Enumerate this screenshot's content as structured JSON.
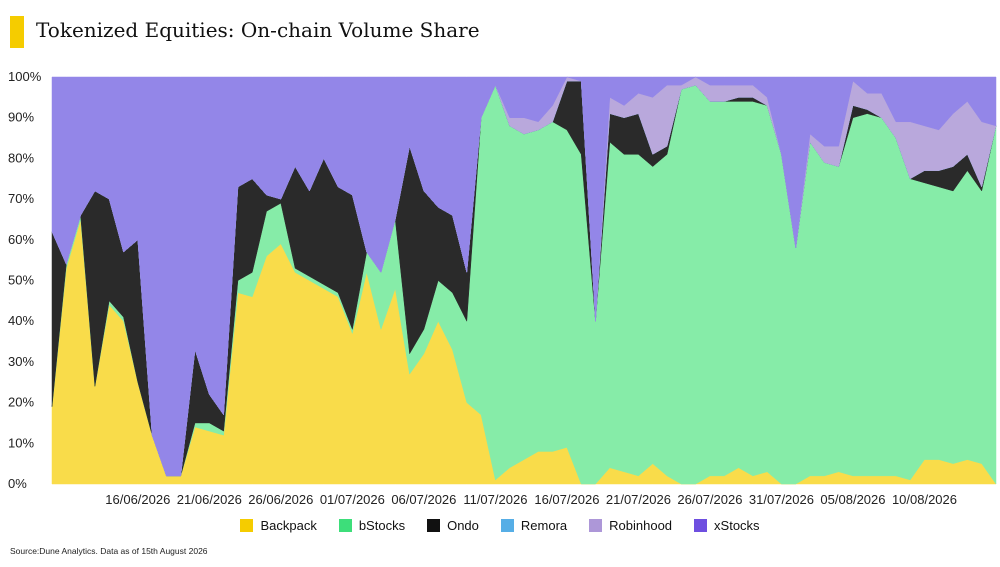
{
  "title": "Tokenized Equities: On-chain Volume Share",
  "source": "Source:Dune Analytics. Data as of 15th August 2026",
  "chart_data": {
    "type": "area",
    "stacked": true,
    "ylim": [
      0,
      100
    ],
    "y_ticks": [
      "0%",
      "10%",
      "20%",
      "30%",
      "40%",
      "50%",
      "60%",
      "70%",
      "80%",
      "90%",
      "100%"
    ],
    "x_ticks": [
      {
        "i": 6,
        "label": "16/06/2026"
      },
      {
        "i": 11,
        "label": "21/06/2026"
      },
      {
        "i": 16,
        "label": "26/06/2026"
      },
      {
        "i": 21,
        "label": "01/07/2026"
      },
      {
        "i": 26,
        "label": "06/07/2026"
      },
      {
        "i": 31,
        "label": "11/07/2026"
      },
      {
        "i": 36,
        "label": "16/07/2026"
      },
      {
        "i": 41,
        "label": "21/07/2026"
      },
      {
        "i": 46,
        "label": "26/07/2026"
      },
      {
        "i": 51,
        "label": "31/07/2026"
      },
      {
        "i": 56,
        "label": "05/08/2026"
      },
      {
        "i": 61,
        "label": "10/08/2026"
      }
    ],
    "legend_position": "bottom",
    "series": [
      {
        "name": "Backpack",
        "color": "#f9dc4a",
        "values": [
          19,
          53,
          65,
          24,
          44,
          40,
          25,
          12,
          2,
          2,
          14,
          13,
          12,
          47,
          46,
          56,
          59,
          52,
          50,
          48,
          46,
          37,
          52,
          38,
          48,
          27,
          32,
          40,
          33,
          20,
          17,
          1,
          4,
          6,
          8,
          8,
          9,
          0,
          0,
          4,
          3,
          2,
          5,
          2,
          0,
          0,
          2,
          2,
          4,
          2,
          3,
          0,
          0,
          2,
          2,
          3,
          2,
          2,
          2,
          2,
          1,
          6,
          6,
          5,
          6,
          5,
          0
        ]
      },
      {
        "name": "bStocks",
        "color": "#86eca8",
        "values": [
          0,
          1,
          1,
          0,
          1,
          1,
          0,
          0,
          0,
          0,
          1,
          2,
          1,
          3,
          6,
          11,
          10,
          1,
          1,
          1,
          1,
          1,
          5,
          14,
          17,
          5,
          6,
          10,
          14,
          20,
          73,
          97,
          84,
          80,
          79,
          81,
          78,
          81,
          40,
          80,
          78,
          79,
          73,
          79,
          97,
          98,
          92,
          92,
          90,
          92,
          90,
          81,
          58,
          82,
          77,
          75,
          88,
          89,
          88,
          83,
          74,
          68,
          67,
          67,
          71,
          67,
          88
        ]
      },
      {
        "name": "Ondo",
        "color": "#2a2a2a",
        "values": [
          43,
          0,
          0,
          48,
          25,
          16,
          35,
          0,
          0,
          0,
          18,
          7,
          4,
          23,
          23,
          4,
          1,
          25,
          21,
          31,
          26,
          33,
          0,
          0,
          0,
          51,
          34,
          18,
          19,
          12,
          0,
          0,
          0,
          0,
          0,
          0,
          12,
          18,
          0,
          7,
          9,
          10,
          3,
          2,
          0,
          0,
          0,
          0,
          1,
          1,
          0,
          0,
          0,
          0,
          0,
          0,
          3,
          1,
          0,
          0,
          0,
          3,
          4,
          6,
          4,
          1,
          0
        ]
      },
      {
        "name": "Remora",
        "color": "#6ab6e6",
        "values": [
          0,
          0,
          0,
          0,
          0,
          0,
          0,
          0,
          0,
          0,
          0,
          0,
          0,
          0,
          0,
          0,
          0,
          0,
          0,
          0,
          0,
          0,
          0,
          0,
          0,
          0,
          0,
          0,
          0,
          0,
          0,
          0,
          0,
          0,
          0,
          0,
          0,
          0,
          0,
          0,
          0,
          0,
          0,
          0,
          0,
          0,
          0,
          0,
          0,
          0,
          0,
          0,
          0,
          0,
          0,
          0,
          0,
          0,
          0,
          0,
          0,
          0,
          0,
          0,
          0,
          0,
          0
        ]
      },
      {
        "name": "Robinhood",
        "color": "#b9a8dc",
        "values": [
          0,
          0,
          0,
          0,
          0,
          0,
          0,
          0,
          0,
          0,
          0,
          0,
          0,
          0,
          0,
          0,
          0,
          0,
          0,
          0,
          0,
          0,
          0,
          0,
          0,
          0,
          0,
          0,
          0,
          0,
          0,
          0,
          2,
          4,
          2,
          4,
          1,
          0,
          0,
          4,
          3,
          5,
          14,
          15,
          1,
          2,
          4,
          4,
          3,
          3,
          2,
          0,
          0,
          2,
          4,
          5,
          6,
          4,
          6,
          4,
          14,
          11,
          10,
          13,
          13,
          16,
          0
        ]
      },
      {
        "name": "xStocks",
        "color": "#9386e8",
        "values": [
          38,
          46,
          34,
          28,
          30,
          43,
          40,
          88,
          98,
          98,
          67,
          78,
          83,
          27,
          25,
          29,
          30,
          22,
          28,
          20,
          27,
          29,
          43,
          48,
          35,
          17,
          28,
          32,
          34,
          48,
          10,
          2,
          10,
          10,
          11,
          7,
          0,
          1,
          60,
          5,
          7,
          4,
          5,
          2,
          2,
          0,
          2,
          2,
          2,
          2,
          5,
          19,
          42,
          14,
          17,
          17,
          1,
          4,
          4,
          11,
          11,
          12,
          13,
          9,
          6,
          11,
          12
        ]
      }
    ]
  },
  "legend_swatch_colors": {
    "Backpack": "#f5cc00",
    "bStocks": "#3dde7a",
    "Ondo": "#111111",
    "Remora": "#56aee6",
    "Robinhood": "#ad97d8",
    "xStocks": "#6e4fe0"
  }
}
